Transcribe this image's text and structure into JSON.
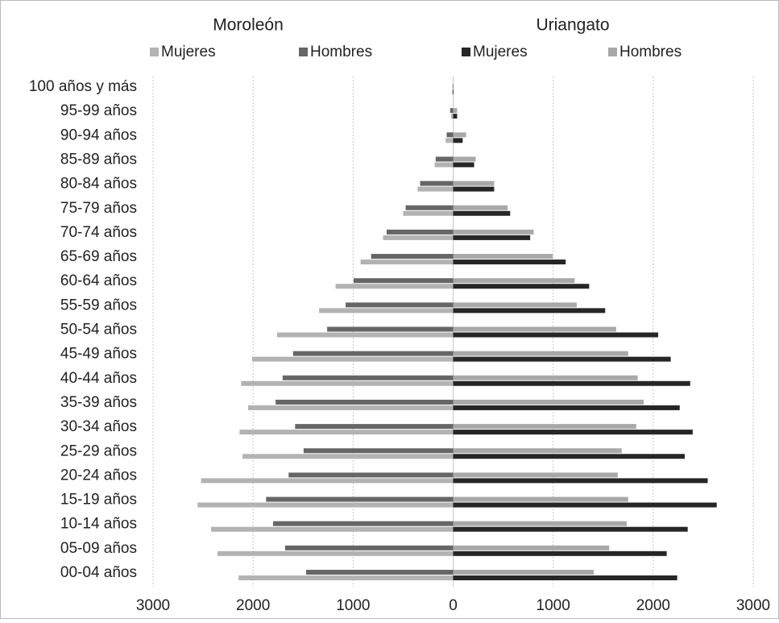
{
  "chart_data": {
    "type": "bar",
    "orientation": "horizontal",
    "group_titles": [
      "Moroleón",
      "Uriangato"
    ],
    "categories": [
      "100 años y más",
      "95-99 años",
      "90-94 años",
      "85-89 años",
      "80-84 años",
      "75-79 años",
      "70-74 años",
      "65-69 años",
      "60-64 años",
      "55-59 años",
      "50-54 años",
      "45-49 años",
      "40-44 años",
      "35-39 años",
      "30-34 años",
      "25-29 años",
      "20-24 años",
      "15-19 años",
      "10-14 años",
      "05-09 años",
      "00-04 años"
    ],
    "series": [
      {
        "name": "Mujeres",
        "color": "#b3b3b3",
        "values": [
          -10,
          -20,
          -75,
          -185,
          -355,
          -500,
          -700,
          -925,
          -1175,
          -1340,
          -1760,
          -2010,
          -2120,
          -2050,
          -2135,
          -2105,
          -2520,
          -2555,
          -2420,
          -2355,
          -2145
        ]
      },
      {
        "name": "Hombres",
        "color": "#666666",
        "values": [
          -5,
          -30,
          -65,
          -175,
          -330,
          -475,
          -665,
          -820,
          -995,
          -1075,
          -1260,
          -1600,
          -1705,
          -1775,
          -1580,
          -1495,
          -1645,
          -1870,
          -1800,
          -1680,
          -1470
        ]
      },
      {
        "name": "Mujeres",
        "color": "#262626",
        "values": [
          5,
          40,
          95,
          210,
          410,
          570,
          770,
          1125,
          1360,
          1520,
          2050,
          2175,
          2370,
          2265,
          2395,
          2315,
          2545,
          2635,
          2345,
          2135,
          2240
        ]
      },
      {
        "name": "Hombres",
        "color": "#a8a8a8",
        "values": [
          3,
          40,
          130,
          225,
          410,
          545,
          805,
          995,
          1215,
          1235,
          1630,
          1750,
          1845,
          1905,
          1830,
          1685,
          1645,
          1750,
          1735,
          1560,
          1405
        ]
      }
    ],
    "xlim": [
      -3000,
      3000
    ],
    "xticks": [
      {
        "value": -3000,
        "label": "3000"
      },
      {
        "value": -2000,
        "label": "2000"
      },
      {
        "value": -1000,
        "label": "1000"
      },
      0,
      1000,
      2000,
      3000
    ],
    "grid": true
  }
}
